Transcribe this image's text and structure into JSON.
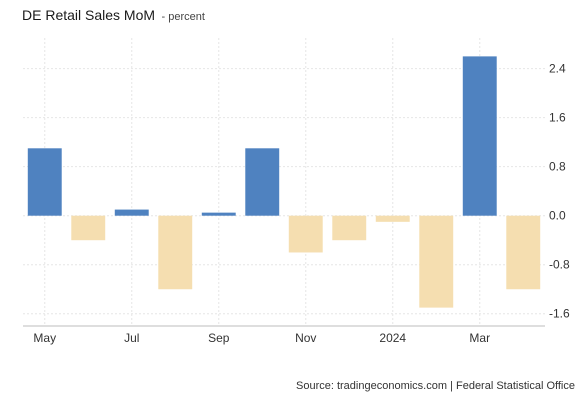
{
  "chart_data": {
    "type": "bar",
    "title": "DE Retail Sales MoM",
    "subtitle": "- percent",
    "x_tick_labels": [
      "May",
      "Jul",
      "Sep",
      "Nov",
      "2024",
      "Mar"
    ],
    "categories": [
      "May 2023",
      "Jun 2023",
      "Jul 2023",
      "Aug 2023",
      "Sep 2023",
      "Oct 2023",
      "Nov 2023",
      "Dec 2023",
      "Jan 2024",
      "Feb 2024",
      "Mar 2024",
      "Apr 2024"
    ],
    "values": [
      1.1,
      -0.4,
      0.1,
      -1.2,
      0.05,
      1.1,
      -0.6,
      -0.4,
      -0.1,
      -1.5,
      2.6,
      -1.2
    ],
    "ylim": [
      -1.8,
      2.9
    ],
    "y_ticks": [
      2.4,
      1.6,
      0.8,
      0.0,
      -0.8,
      -1.6
    ],
    "y_tick_labels": [
      "2.4",
      "1.6",
      "0.8",
      "0.0",
      "-0.8",
      "-1.6"
    ],
    "y_axis_side": "right",
    "grid": true,
    "colors": {
      "positive": "#4f82c0",
      "negative": "#f5deb0"
    }
  },
  "source_text": "Source: tradingeconomics.com | Federal Statistical Office"
}
